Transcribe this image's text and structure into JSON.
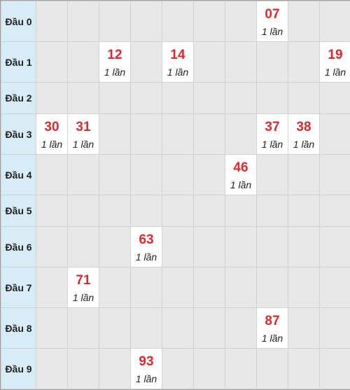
{
  "colors": {
    "header_bg": "#d7ecf7",
    "empty_cell_bg": "#e8e8e8",
    "hit_cell_bg": "#ffffff",
    "number_color": "#e3262b",
    "grid_line": "#d2d2d2"
  },
  "rows": [
    {
      "label": "Đầu 0",
      "cells": [
        null,
        null,
        null,
        null,
        null,
        null,
        null,
        {
          "number": "07",
          "count": "1 lần"
        },
        null,
        null
      ]
    },
    {
      "label": "Đầu 1",
      "cells": [
        null,
        null,
        {
          "number": "12",
          "count": "1 lần"
        },
        null,
        {
          "number": "14",
          "count": "1 lần"
        },
        null,
        null,
        null,
        null,
        {
          "number": "19",
          "count": "1 lần"
        }
      ]
    },
    {
      "label": "Đầu 2",
      "cells": [
        null,
        null,
        null,
        null,
        null,
        null,
        null,
        null,
        null,
        null
      ]
    },
    {
      "label": "Đầu 3",
      "cells": [
        {
          "number": "30",
          "count": "1 lần"
        },
        {
          "number": "31",
          "count": "1 lần"
        },
        null,
        null,
        null,
        null,
        null,
        {
          "number": "37",
          "count": "1 lần"
        },
        {
          "number": "38",
          "count": "1 lần"
        },
        null
      ]
    },
    {
      "label": "Đầu 4",
      "cells": [
        null,
        null,
        null,
        null,
        null,
        null,
        {
          "number": "46",
          "count": "1 lần"
        },
        null,
        null,
        null
      ]
    },
    {
      "label": "Đầu 5",
      "cells": [
        null,
        null,
        null,
        null,
        null,
        null,
        null,
        null,
        null,
        null
      ]
    },
    {
      "label": "Đầu 6",
      "cells": [
        null,
        null,
        null,
        {
          "number": "63",
          "count": "1 lần"
        },
        null,
        null,
        null,
        null,
        null,
        null
      ]
    },
    {
      "label": "Đầu 7",
      "cells": [
        null,
        {
          "number": "71",
          "count": "1 lần"
        },
        null,
        null,
        null,
        null,
        null,
        null,
        null,
        null
      ]
    },
    {
      "label": "Đầu 8",
      "cells": [
        null,
        null,
        null,
        null,
        null,
        null,
        null,
        {
          "number": "87",
          "count": "1 lần"
        },
        null,
        null
      ]
    },
    {
      "label": "Đầu 9",
      "cells": [
        null,
        null,
        null,
        {
          "number": "93",
          "count": "1 lần"
        },
        null,
        null,
        null,
        null,
        null,
        null
      ]
    }
  ]
}
